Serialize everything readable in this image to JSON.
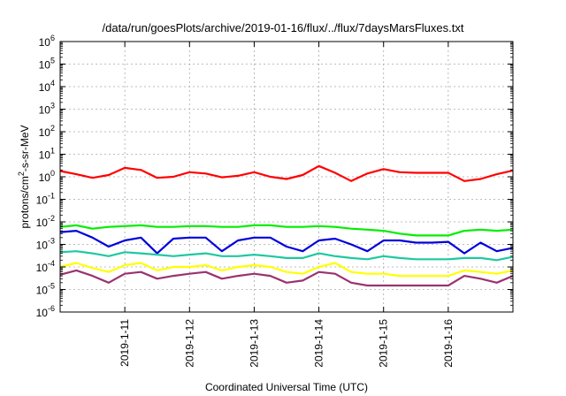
{
  "chart_data": {
    "type": "line",
    "title": "/data/run/goesPlots/archive/2019-01-16/flux/../flux/7daysMarsFluxes.txt",
    "xlabel": "Coordinated Universal Time (UTC)",
    "ylabel_base": "protons/cm",
    "ylabel_sup": "2",
    "ylabel_rest": "-s-sr-MeV",
    "yscale": "log",
    "ylim": [
      1e-06,
      1000000.0
    ],
    "xlim": [
      0,
      7
    ],
    "grid": true,
    "x_tick_labels": [
      "2019-1-11",
      "2019-1-12",
      "2019-1-13",
      "2019-1-14",
      "2019-1-15",
      "2019-1-16"
    ],
    "x_ticks": [
      1,
      2,
      3,
      4,
      5,
      6
    ],
    "y_ticks": [
      -6,
      -5,
      -4,
      -3,
      -2,
      -1,
      0,
      1,
      2,
      3,
      4,
      5,
      6
    ],
    "y_tick_base": "10",
    "x": [
      0.0,
      0.25,
      0.5,
      0.75,
      1.0,
      1.25,
      1.5,
      1.75,
      2.0,
      2.25,
      2.5,
      2.75,
      3.0,
      3.25,
      3.5,
      3.75,
      4.0,
      4.25,
      4.5,
      4.75,
      5.0,
      5.25,
      5.5,
      5.75,
      6.0,
      6.25,
      6.5,
      6.75,
      7.0
    ],
    "series": [
      {
        "color": "#ff0000",
        "values": [
          1.8,
          1.3,
          0.9,
          1.2,
          2.5,
          2.0,
          0.9,
          1.0,
          1.6,
          1.4,
          0.95,
          1.1,
          1.6,
          1.0,
          0.8,
          1.2,
          3.0,
          1.5,
          0.65,
          1.4,
          2.2,
          1.6,
          1.5,
          1.5,
          1.5,
          0.65,
          0.8,
          1.3,
          1.9
        ]
      },
      {
        "color": "#00ee00",
        "values": [
          0.006,
          0.007,
          0.005,
          0.006,
          0.0065,
          0.007,
          0.006,
          0.006,
          0.0065,
          0.0065,
          0.006,
          0.006,
          0.007,
          0.007,
          0.006,
          0.006,
          0.0065,
          0.006,
          0.005,
          0.0045,
          0.004,
          0.003,
          0.0025,
          0.0025,
          0.0025,
          0.004,
          0.0045,
          0.004,
          0.0045
        ]
      },
      {
        "color": "#0000dd",
        "values": [
          0.0035,
          0.004,
          0.002,
          0.0008,
          0.0015,
          0.002,
          0.0004,
          0.0018,
          0.002,
          0.002,
          0.0005,
          0.0015,
          0.002,
          0.002,
          0.0008,
          0.0005,
          0.0015,
          0.0018,
          0.001,
          0.0005,
          0.0015,
          0.0015,
          0.0012,
          0.0012,
          0.0013,
          0.0004,
          0.0012,
          0.0005,
          0.0007
        ]
      },
      {
        "color": "#1ec8a0",
        "values": [
          0.00045,
          0.0005,
          0.0004,
          0.0003,
          0.00045,
          0.0004,
          0.00035,
          0.0003,
          0.00035,
          0.0004,
          0.0003,
          0.0003,
          0.00035,
          0.0003,
          0.00025,
          0.00025,
          0.0004,
          0.0003,
          0.00025,
          0.00022,
          0.0003,
          0.00025,
          0.00022,
          0.00022,
          0.00022,
          0.00025,
          0.00025,
          0.0002,
          0.00028
        ]
      },
      {
        "color": "#ffff00",
        "values": [
          0.0001,
          0.00015,
          9e-05,
          6e-05,
          0.00012,
          0.00015,
          7e-05,
          0.0001,
          0.0001,
          0.00012,
          7e-05,
          0.0001,
          0.00012,
          0.0001,
          6e-05,
          5e-05,
          0.0001,
          0.00015,
          6e-05,
          5e-05,
          5e-05,
          4e-05,
          4e-05,
          4e-05,
          4e-05,
          7e-05,
          6e-05,
          5e-05,
          7e-05
        ]
      },
      {
        "color": "#993370",
        "values": [
          4.5e-05,
          7e-05,
          4e-05,
          2e-05,
          5e-05,
          6e-05,
          3e-05,
          4e-05,
          5e-05,
          6e-05,
          3e-05,
          4e-05,
          5e-05,
          4e-05,
          2e-05,
          2.5e-05,
          6e-05,
          5e-05,
          2e-05,
          1.5e-05,
          1.5e-05,
          1.5e-05,
          1.5e-05,
          1.5e-05,
          1.5e-05,
          4e-05,
          3e-05,
          2e-05,
          4e-05
        ]
      }
    ]
  }
}
